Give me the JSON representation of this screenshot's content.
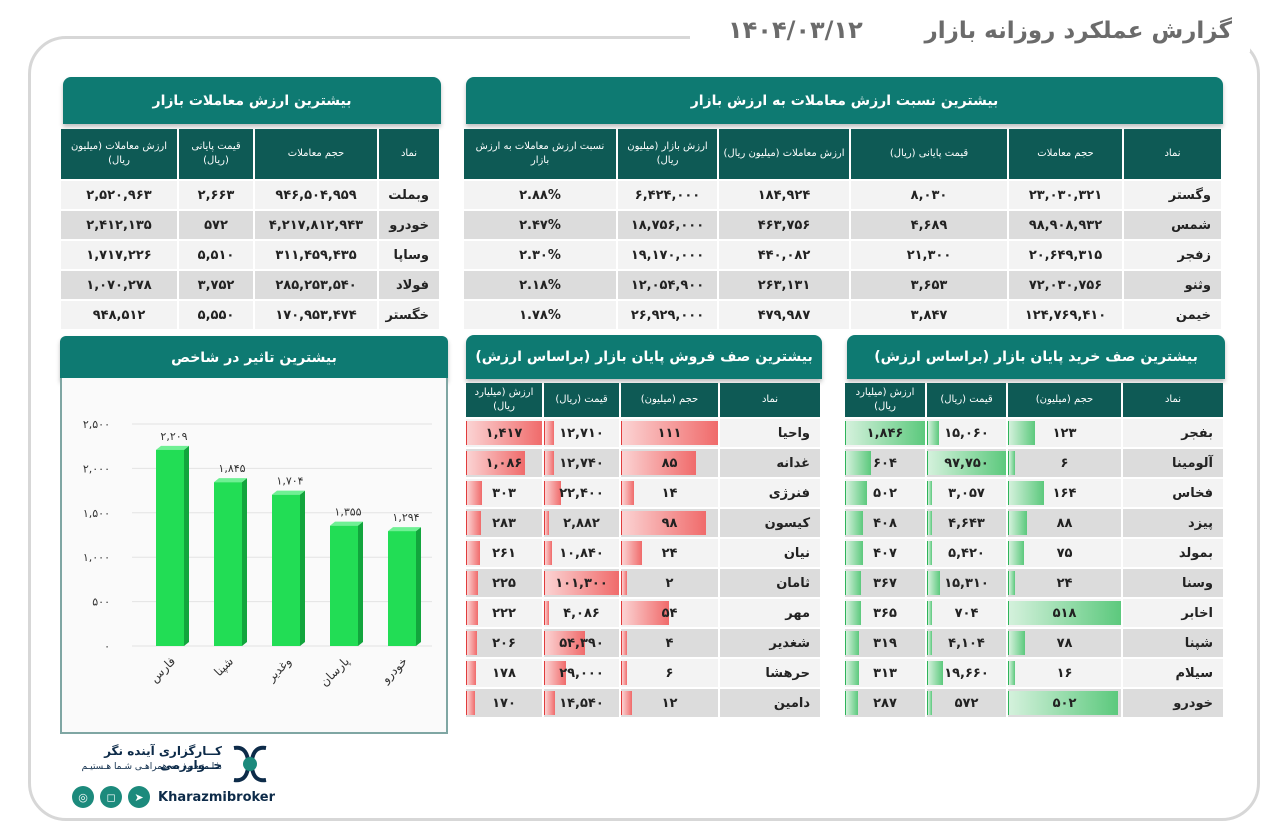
{
  "header": {
    "title": "گزارش عملکرد روزانه بازار",
    "date": "۱۴۰۴/۰۳/۱۲"
  },
  "top_value": {
    "title": "بیشترین ارزش معاملات بازار",
    "headers": [
      "نماد",
      "حجم معاملات",
      "قیمت پایانی (ریال)",
      "ارزش معاملات (میلیون ریال)"
    ],
    "rows": [
      [
        "وبملت",
        "۹۴۶,۵۰۴,۹۵۹",
        "۲,۶۶۳",
        "۲,۵۲۰,۹۶۳"
      ],
      [
        "خودرو",
        "۴,۲۱۷,۸۱۲,۹۴۳",
        "۵۷۲",
        "۲,۴۱۲,۱۳۵"
      ],
      [
        "وساپا",
        "۳۱۱,۴۵۹,۴۳۵",
        "۵,۵۱۰",
        "۱,۷۱۷,۲۲۶"
      ],
      [
        "فولاد",
        "۲۸۵,۲۵۳,۵۴۰",
        "۳,۷۵۲",
        "۱,۰۷۰,۲۷۸"
      ],
      [
        "خگستر",
        "۱۷۰,۹۵۳,۴۷۴",
        "۵,۵۵۰",
        "۹۴۸,۵۱۲"
      ]
    ]
  },
  "top_ratio": {
    "title": "بیشترین نسبت ارزش معاملات به ارزش بازار",
    "headers": [
      "نماد",
      "حجم معاملات",
      "قیمت پایانی (ریال)",
      "ارزش معاملات (میلیون ریال)",
      "ارزش بازار (میلیون ریال)",
      "نسبت ارزش معاملات به ارزش بازار"
    ],
    "rows": [
      [
        "وگستر",
        "۲۳,۰۳۰,۳۲۱",
        "۸,۰۳۰",
        "۱۸۴,۹۲۴",
        "۶,۴۲۴,۰۰۰",
        "۲.۸۸%"
      ],
      [
        "شمس",
        "۹۸,۹۰۸,۹۳۲",
        "۴,۶۸۹",
        "۴۶۳,۷۵۶",
        "۱۸,۷۵۶,۰۰۰",
        "۲.۴۷%"
      ],
      [
        "زفجر",
        "۲۰,۶۴۹,۳۱۵",
        "۲۱,۳۰۰",
        "۴۴۰,۰۸۲",
        "۱۹,۱۷۰,۰۰۰",
        "۲.۳۰%"
      ],
      [
        "وثنو",
        "۷۲,۰۳۰,۷۵۶",
        "۳,۶۵۳",
        "۲۶۳,۱۳۱",
        "۱۲,۰۵۴,۹۰۰",
        "۲.۱۸%"
      ],
      [
        "خیمن",
        "۱۲۴,۷۶۹,۴۱۰",
        "۳,۸۴۷",
        "۴۷۹,۹۸۷",
        "۲۶,۹۲۹,۰۰۰",
        "۱.۷۸%"
      ]
    ]
  },
  "index_impact": {
    "title": "بیشترین تاثیر در شاخص",
    "chart_data": {
      "type": "bar",
      "categories": [
        "فارس",
        "شپنا",
        "وغدیر",
        "پارسان",
        "خودرو"
      ],
      "values": [
        2209,
        1845,
        1704,
        1355,
        1294
      ],
      "value_labels": [
        "۲,۲۰۹",
        "۱,۸۴۵",
        "۱,۷۰۴",
        "۱,۳۵۵",
        "۱,۲۹۴"
      ],
      "yticks": [
        0,
        500,
        1000,
        1500,
        2000,
        2500
      ],
      "ytick_labels": [
        "۰",
        "۵۰۰",
        "۱,۰۰۰",
        "۱,۵۰۰",
        "۲,۰۰۰",
        "۲,۵۰۰"
      ],
      "ylim": [
        0,
        2500
      ],
      "color": "#22dd55"
    }
  },
  "sell_queue": {
    "title": "بیشترین صف فروش پایان بازار (براساس ارزش)",
    "headers": [
      "نماد",
      "حجم (میلیون)",
      "قیمت (ریال)",
      "ارزش (میلیارد ریال)"
    ],
    "rows": [
      [
        "واحیا",
        "۱۱۱",
        "۱۲,۷۱۰",
        "۱,۴۱۷"
      ],
      [
        "غدانه",
        "۸۵",
        "۱۲,۷۴۰",
        "۱,۰۸۶"
      ],
      [
        "فنرژی",
        "۱۴",
        "۲۲,۴۰۰",
        "۳۰۳"
      ],
      [
        "کیسون",
        "۹۸",
        "۲,۸۸۲",
        "۲۸۳"
      ],
      [
        "نیان",
        "۲۴",
        "۱۰,۸۴۰",
        "۲۶۱"
      ],
      [
        "ثامان",
        "۲",
        "۱۰۱,۳۰۰",
        "۲۲۵"
      ],
      [
        "مهر",
        "۵۴",
        "۴,۰۸۶",
        "۲۲۲"
      ],
      [
        "شغدیر",
        "۴",
        "۵۴,۳۹۰",
        "۲۰۶"
      ],
      [
        "حرهشا",
        "۶",
        "۲۹,۰۰۰",
        "۱۷۸"
      ],
      [
        "دامین",
        "۱۲",
        "۱۴,۵۴۰",
        "۱۷۰"
      ]
    ],
    "volume_frac": [
      1.0,
      0.77,
      0.13,
      0.88,
      0.22,
      0.02,
      0.49,
      0.04,
      0.05,
      0.11
    ],
    "price_frac": [
      0.13,
      0.13,
      0.22,
      0.03,
      0.11,
      1.0,
      0.04,
      0.54,
      0.29,
      0.14
    ],
    "value_frac": [
      1.0,
      0.77,
      0.21,
      0.2,
      0.18,
      0.16,
      0.16,
      0.15,
      0.13,
      0.12
    ]
  },
  "buy_queue": {
    "title": "بیشترین صف خرید پایان بازار (براساس ارزش)",
    "headers": [
      "نماد",
      "حجم (میلیون)",
      "قیمت (ریال)",
      "ارزش (میلیارد ریال)"
    ],
    "rows": [
      [
        "بفجر",
        "۱۲۳",
        "۱۵,۰۶۰",
        "۱,۸۴۶"
      ],
      [
        "آلومینا",
        "۶",
        "۹۷,۷۵۰",
        "۶۰۴"
      ],
      [
        "فخاس",
        "۱۶۴",
        "۳,۰۵۷",
        "۵۰۲"
      ],
      [
        "پیزد",
        "۸۸",
        "۴,۶۴۳",
        "۴۰۸"
      ],
      [
        "بمولد",
        "۷۵",
        "۵,۴۲۰",
        "۴۰۷"
      ],
      [
        "وسنا",
        "۲۴",
        "۱۵,۳۱۰",
        "۳۶۷"
      ],
      [
        "اخابر",
        "۵۱۸",
        "۷۰۴",
        "۳۶۵"
      ],
      [
        "شپنا",
        "۷۸",
        "۴,۱۰۴",
        "۳۱۹"
      ],
      [
        "سیلام",
        "۱۶",
        "۱۹,۶۶۰",
        "۳۱۳"
      ],
      [
        "خودرو",
        "۵۰۲",
        "۵۷۲",
        "۲۸۷"
      ]
    ],
    "volume_frac": [
      0.24,
      0.01,
      0.32,
      0.17,
      0.14,
      0.05,
      1.0,
      0.15,
      0.03,
      0.97
    ],
    "price_frac": [
      0.15,
      1.0,
      0.03,
      0.05,
      0.06,
      0.16,
      0.01,
      0.04,
      0.2,
      0.01
    ],
    "value_frac": [
      1.0,
      0.33,
      0.27,
      0.22,
      0.22,
      0.2,
      0.2,
      0.17,
      0.17,
      0.16
    ]
  },
  "footer": {
    "company": "کــارگزاری آینده نگر خــوارزمی",
    "slogan": "مـا متـعـهد بـه همراهـی شـما هـستیـم",
    "brand": "Kharazmibroker",
    "icons": [
      "telegram-icon",
      "instagram-icon",
      "web-icon"
    ]
  }
}
